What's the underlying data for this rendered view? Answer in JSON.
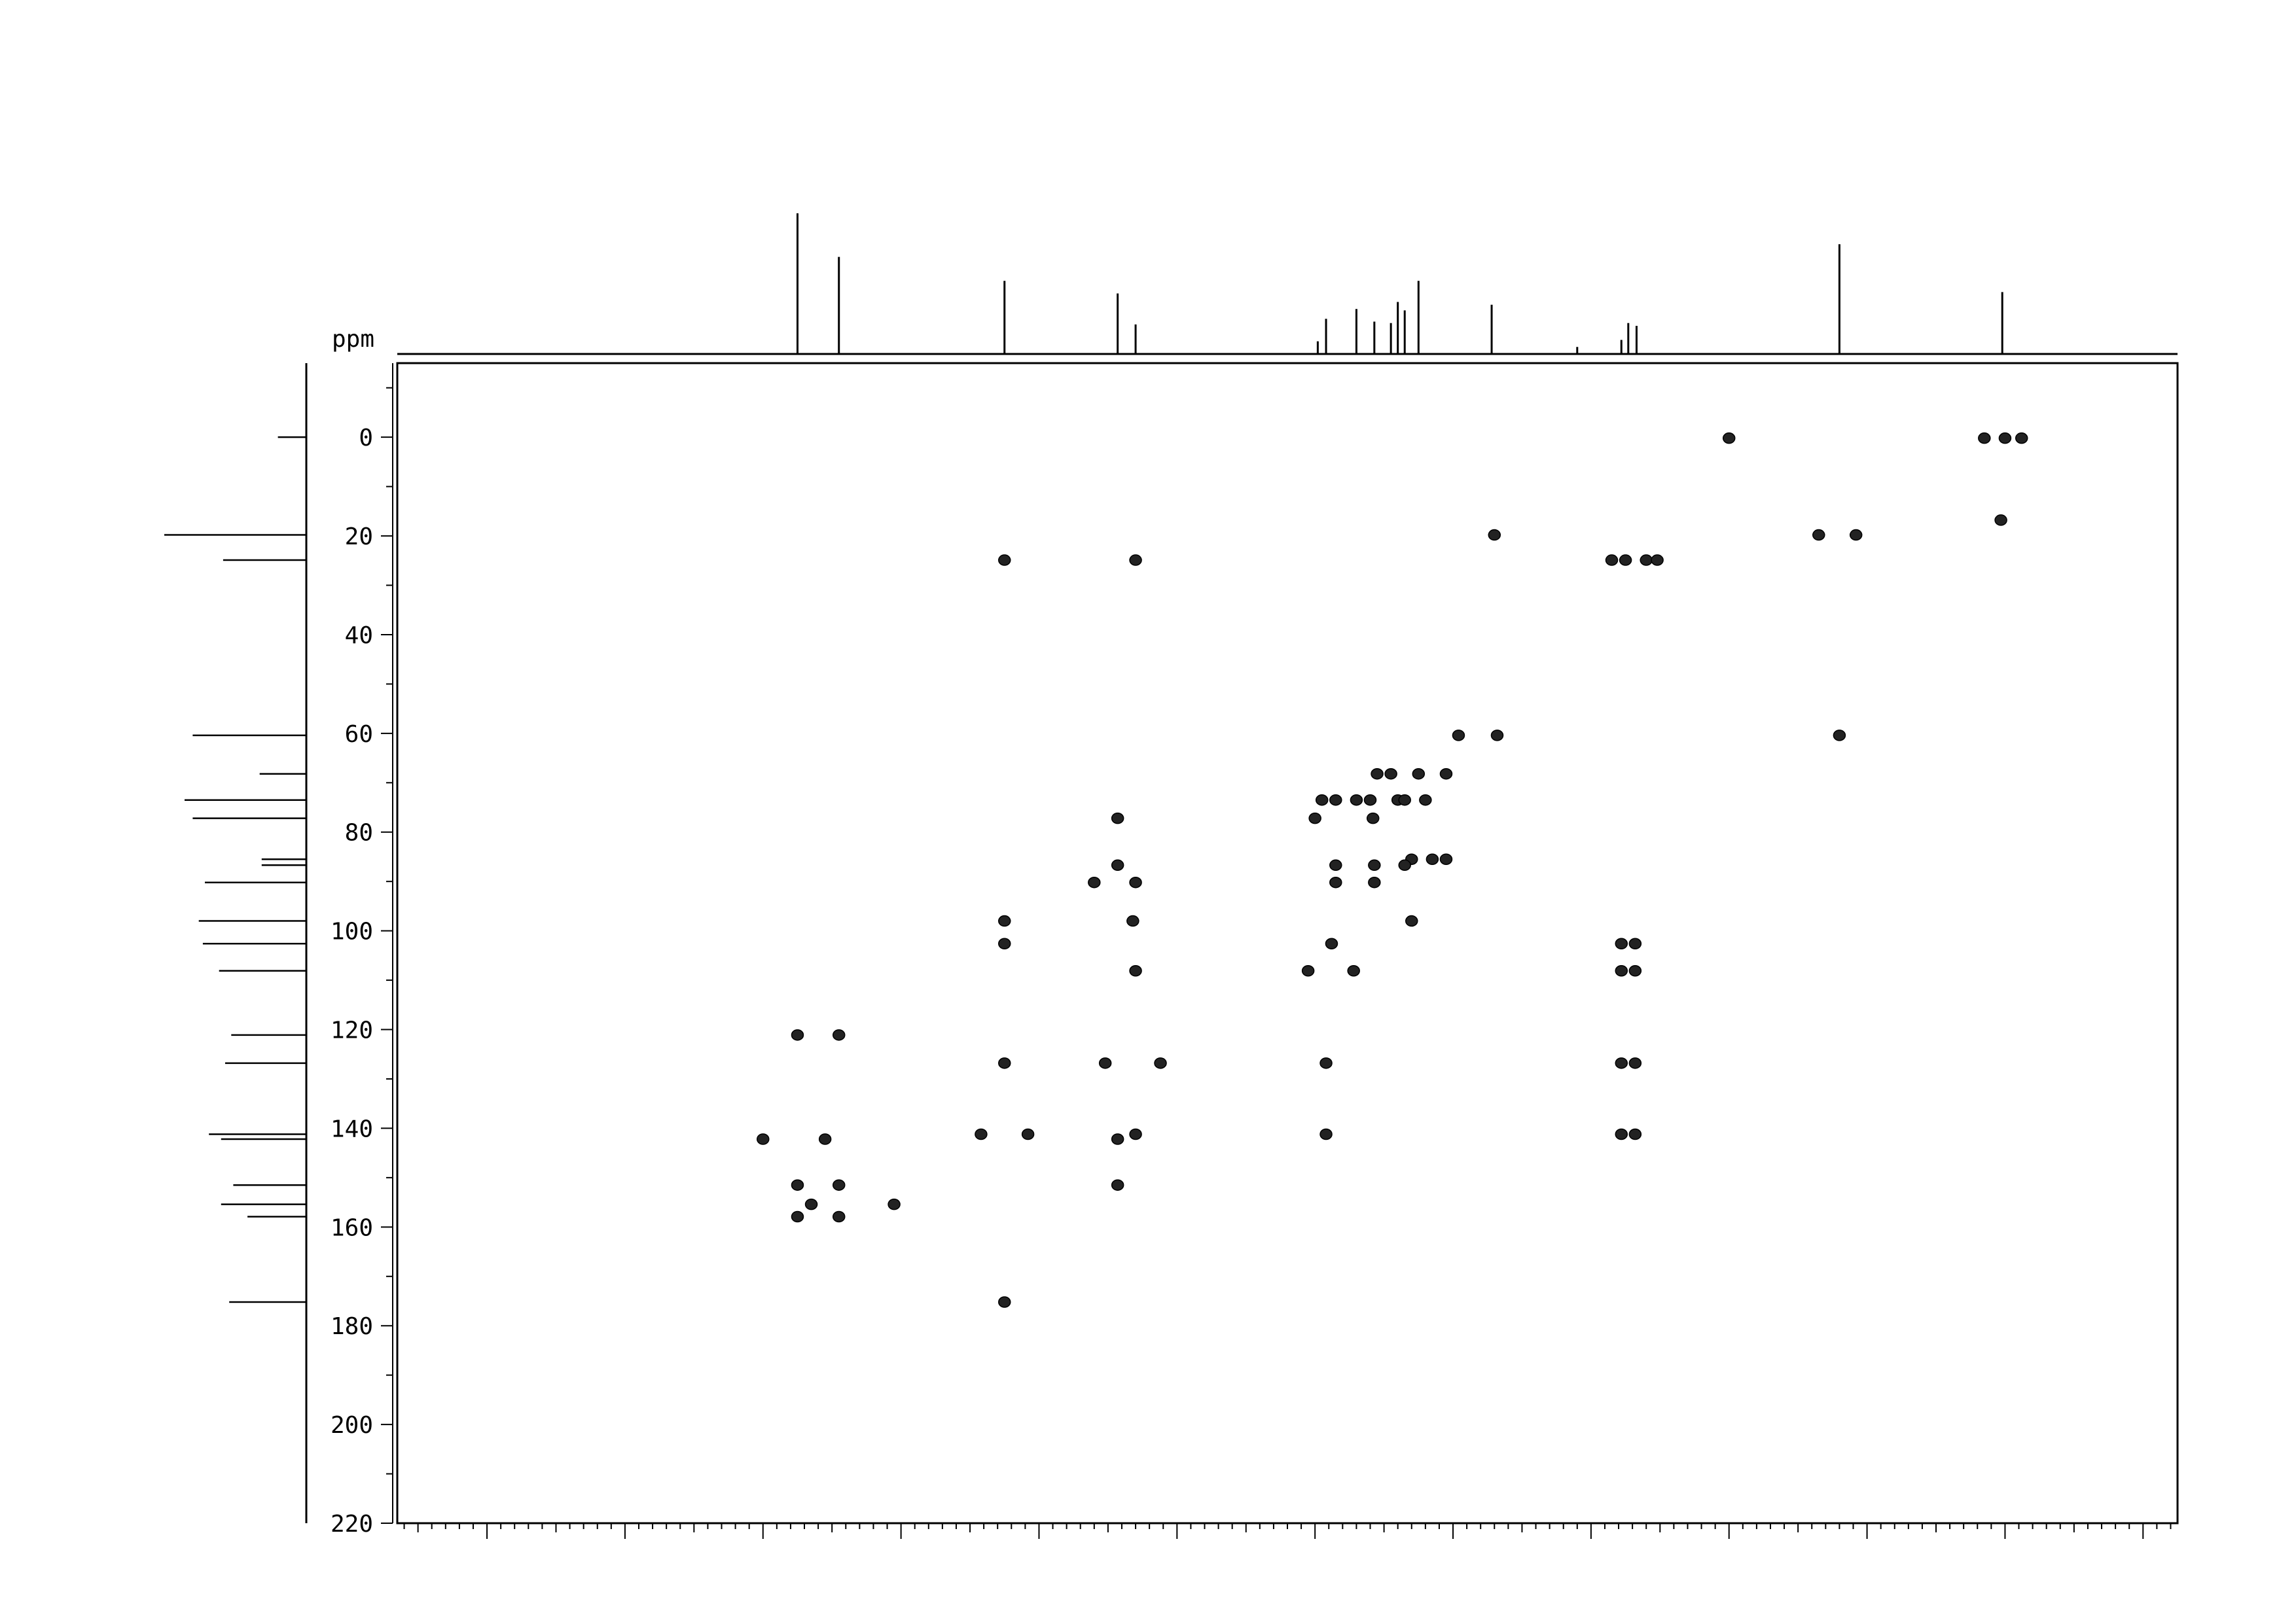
{
  "chart_data": {
    "type": "scatter",
    "title": "",
    "xlabel": "",
    "ylabel": "ppm",
    "y_axis": {
      "label": "ppm",
      "ticks": [
        "0",
        "20",
        "40",
        "60",
        "80",
        "100",
        "120",
        "140",
        "160",
        "180",
        "200",
        "220"
      ],
      "range": [
        -15,
        220
      ],
      "inverted": true
    },
    "x_axis": {
      "tick_labels": [],
      "range": [
        8.65,
        -4.25
      ],
      "note_unlabeled": true
    },
    "grid": false,
    "legend": "none",
    "colors": {
      "ink": "#000000",
      "background": "#ffffff"
    },
    "proton_projection": [
      {
        "x": 5.75,
        "h": 1.0
      },
      {
        "x": 5.45,
        "h": 0.69
      },
      {
        "x": 4.25,
        "h": 0.52
      },
      {
        "x": 3.43,
        "h": 0.43
      },
      {
        "x": 3.3,
        "h": 0.21
      },
      {
        "x": 1.98,
        "h": 0.09
      },
      {
        "x": 1.92,
        "h": 0.25
      },
      {
        "x": 1.7,
        "h": 0.32
      },
      {
        "x": 1.57,
        "h": 0.23
      },
      {
        "x": 1.45,
        "h": 0.22
      },
      {
        "x": 1.4,
        "h": 0.37
      },
      {
        "x": 1.35,
        "h": 0.31
      },
      {
        "x": 1.25,
        "h": 0.52
      },
      {
        "x": 0.72,
        "h": 0.35
      },
      {
        "x": 0.1,
        "h": 0.05
      },
      {
        "x": -0.22,
        "h": 0.1
      },
      {
        "x": -0.27,
        "h": 0.22
      },
      {
        "x": -0.33,
        "h": 0.2
      },
      {
        "x": -1.8,
        "h": 0.78
      },
      {
        "x": -2.98,
        "h": 0.44
      }
    ],
    "carbon_projection": [
      {
        "y": 0.0,
        "len": 0.14
      },
      {
        "y": 19.8,
        "len": 0.7
      },
      {
        "y": 24.9,
        "len": 0.41
      },
      {
        "y": 60.4,
        "len": 0.56
      },
      {
        "y": 68.2,
        "len": 0.23
      },
      {
        "y": 73.5,
        "len": 0.6
      },
      {
        "y": 77.2,
        "len": 0.56
      },
      {
        "y": 85.5,
        "len": 0.22
      },
      {
        "y": 86.7,
        "len": 0.22
      },
      {
        "y": 90.2,
        "len": 0.5
      },
      {
        "y": 98.0,
        "len": 0.53
      },
      {
        "y": 102.6,
        "len": 0.51
      },
      {
        "y": 108.1,
        "len": 0.43
      },
      {
        "y": 121.1,
        "len": 0.37
      },
      {
        "y": 126.8,
        "len": 0.4
      },
      {
        "y": 141.2,
        "len": 0.48
      },
      {
        "y": 142.2,
        "len": 0.42
      },
      {
        "y": 151.5,
        "len": 0.36
      },
      {
        "y": 155.4,
        "len": 0.42
      },
      {
        "y": 157.9,
        "len": 0.29
      },
      {
        "y": 175.2,
        "len": 0.38
      }
    ],
    "cross_peaks": [
      {
        "x": -1.0,
        "y": 0.2
      },
      {
        "x": -2.85,
        "y": 0.2
      },
      {
        "x": -3.0,
        "y": 0.2
      },
      {
        "x": -3.12,
        "y": 0.2
      },
      {
        "x": -2.97,
        "y": 16.8
      },
      {
        "x": 0.7,
        "y": 19.8
      },
      {
        "x": -1.65,
        "y": 19.8
      },
      {
        "x": -1.92,
        "y": 19.8
      },
      {
        "x": 4.25,
        "y": 24.9
      },
      {
        "x": 3.3,
        "y": 24.9
      },
      {
        "x": -0.15,
        "y": 24.9
      },
      {
        "x": -0.25,
        "y": 24.9
      },
      {
        "x": -0.4,
        "y": 24.9
      },
      {
        "x": -0.48,
        "y": 24.9
      },
      {
        "x": 0.96,
        "y": 60.4
      },
      {
        "x": 0.68,
        "y": 60.4
      },
      {
        "x": -1.8,
        "y": 60.4
      },
      {
        "x": 1.55,
        "y": 68.2
      },
      {
        "x": 1.45,
        "y": 68.2
      },
      {
        "x": 1.25,
        "y": 68.2
      },
      {
        "x": 1.05,
        "y": 68.2
      },
      {
        "x": 1.7,
        "y": 73.5
      },
      {
        "x": 1.6,
        "y": 73.5
      },
      {
        "x": 1.4,
        "y": 73.5
      },
      {
        "x": 1.35,
        "y": 73.5
      },
      {
        "x": 1.2,
        "y": 73.5
      },
      {
        "x": 1.95,
        "y": 73.5
      },
      {
        "x": 1.85,
        "y": 73.5
      },
      {
        "x": 3.43,
        "y": 77.2
      },
      {
        "x": 2.0,
        "y": 77.2
      },
      {
        "x": 1.58,
        "y": 77.2
      },
      {
        "x": 1.3,
        "y": 85.5
      },
      {
        "x": 1.15,
        "y": 85.5
      },
      {
        "x": 1.05,
        "y": 85.5
      },
      {
        "x": 1.35,
        "y": 86.7
      },
      {
        "x": 1.85,
        "y": 86.7
      },
      {
        "x": 1.57,
        "y": 86.7
      },
      {
        "x": 3.43,
        "y": 86.7
      },
      {
        "x": 3.6,
        "y": 90.2
      },
      {
        "x": 3.3,
        "y": 90.2
      },
      {
        "x": 1.85,
        "y": 90.2
      },
      {
        "x": 1.57,
        "y": 90.2
      },
      {
        "x": 4.25,
        "y": 98.0
      },
      {
        "x": 3.32,
        "y": 98.0
      },
      {
        "x": 1.3,
        "y": 98.0
      },
      {
        "x": 4.25,
        "y": 102.6
      },
      {
        "x": 1.88,
        "y": 102.6
      },
      {
        "x": -0.22,
        "y": 102.6
      },
      {
        "x": -0.32,
        "y": 102.6
      },
      {
        "x": 3.3,
        "y": 108.1
      },
      {
        "x": 2.05,
        "y": 108.1
      },
      {
        "x": 1.72,
        "y": 108.1
      },
      {
        "x": -0.22,
        "y": 108.1
      },
      {
        "x": -0.32,
        "y": 108.1
      },
      {
        "x": 5.75,
        "y": 121.1
      },
      {
        "x": 5.45,
        "y": 121.1
      },
      {
        "x": 4.25,
        "y": 126.8
      },
      {
        "x": 3.52,
        "y": 126.8
      },
      {
        "x": 3.12,
        "y": 126.8
      },
      {
        "x": 1.92,
        "y": 126.8
      },
      {
        "x": -0.22,
        "y": 126.8
      },
      {
        "x": -0.32,
        "y": 126.8
      },
      {
        "x": 6.0,
        "y": 142.2
      },
      {
        "x": 5.55,
        "y": 142.2
      },
      {
        "x": 4.42,
        "y": 141.2
      },
      {
        "x": 4.08,
        "y": 141.2
      },
      {
        "x": 3.43,
        "y": 142.2
      },
      {
        "x": 3.3,
        "y": 141.2
      },
      {
        "x": 1.92,
        "y": 141.2
      },
      {
        "x": -0.22,
        "y": 141.2
      },
      {
        "x": -0.32,
        "y": 141.2
      },
      {
        "x": 5.75,
        "y": 151.5
      },
      {
        "x": 5.45,
        "y": 151.5
      },
      {
        "x": 3.43,
        "y": 151.5
      },
      {
        "x": 5.65,
        "y": 155.4
      },
      {
        "x": 5.05,
        "y": 155.4
      },
      {
        "x": 5.75,
        "y": 157.9
      },
      {
        "x": 5.45,
        "y": 157.9
      },
      {
        "x": 4.25,
        "y": 175.2
      }
    ]
  }
}
